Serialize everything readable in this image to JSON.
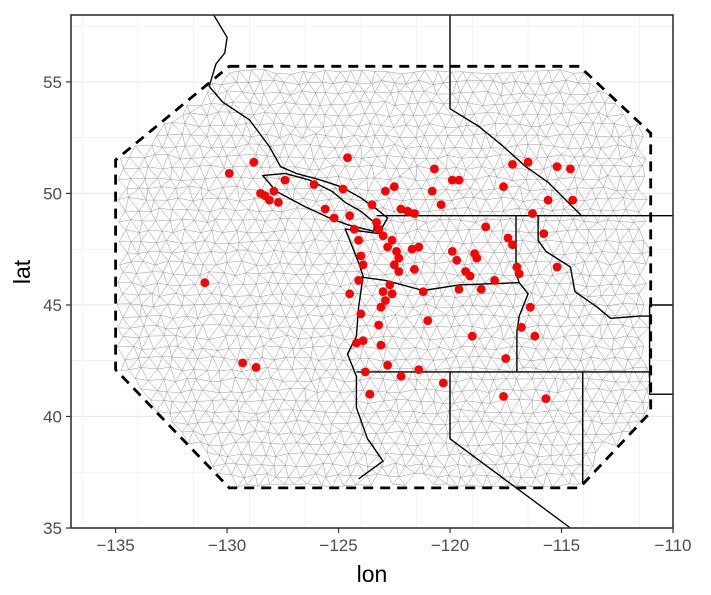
{
  "chart_data": {
    "type": "scatter",
    "title": "",
    "xlabel": "lon",
    "ylabel": "lat",
    "xlim": [
      -137,
      -110
    ],
    "ylim": [
      35,
      58
    ],
    "grid": true,
    "x_ticks": [
      -135,
      -130,
      -125,
      -120,
      -115,
      -110
    ],
    "y_ticks": [
      35,
      40,
      45,
      50,
      55
    ],
    "x_tick_labels": [
      "−135",
      "−130",
      "−125",
      "−120",
      "−115",
      "−110"
    ],
    "y_tick_labels": [
      "35",
      "40",
      "45",
      "50",
      "55"
    ],
    "point_color": "#ff0000",
    "mesh_color": "#8c8c8c",
    "boundary_color": "#000000",
    "domain_boundary": [
      [
        -129.9,
        55.7
      ],
      [
        -114.2,
        55.7
      ],
      [
        -111.0,
        52.7
      ],
      [
        -111.0,
        40.2
      ],
      [
        -114.2,
        36.8
      ],
      [
        -129.9,
        36.8
      ],
      [
        -135.0,
        42.1
      ],
      [
        -135.0,
        51.5
      ]
    ],
    "points": [
      [
        -131.0,
        46.0
      ],
      [
        -129.9,
        50.9
      ],
      [
        -129.3,
        42.4
      ],
      [
        -128.8,
        51.4
      ],
      [
        -128.7,
        42.2
      ],
      [
        -128.5,
        50.0
      ],
      [
        -128.3,
        49.9
      ],
      [
        -128.1,
        49.7
      ],
      [
        -127.9,
        50.1
      ],
      [
        -127.7,
        49.6
      ],
      [
        -127.4,
        50.6
      ],
      [
        -126.1,
        50.4
      ],
      [
        -125.6,
        49.3
      ],
      [
        -125.2,
        48.9
      ],
      [
        -124.8,
        50.2
      ],
      [
        -124.6,
        51.6
      ],
      [
        -124.5,
        49.0
      ],
      [
        -124.3,
        48.4
      ],
      [
        -124.1,
        47.9
      ],
      [
        -124.0,
        47.2
      ],
      [
        -124.1,
        46.1
      ],
      [
        -123.9,
        46.8
      ],
      [
        -124.0,
        44.6
      ],
      [
        -123.9,
        43.4
      ],
      [
        -123.8,
        42.0
      ],
      [
        -123.6,
        41.0
      ],
      [
        -123.5,
        49.5
      ],
      [
        -123.3,
        48.7
      ],
      [
        -123.2,
        48.4
      ],
      [
        -123.0,
        48.1
      ],
      [
        -122.8,
        47.6
      ],
      [
        -122.6,
        47.9
      ],
      [
        -122.4,
        47.4
      ],
      [
        -122.3,
        47.1
      ],
      [
        -122.5,
        46.8
      ],
      [
        -122.3,
        46.5
      ],
      [
        -122.7,
        45.9
      ],
      [
        -122.6,
        45.5
      ],
      [
        -122.9,
        45.2
      ],
      [
        -123.1,
        44.9
      ],
      [
        -123.2,
        44.1
      ],
      [
        -123.1,
        43.2
      ],
      [
        -122.8,
        42.3
      ],
      [
        -122.2,
        41.8
      ],
      [
        -123.0,
        45.6
      ],
      [
        -122.9,
        50.1
      ],
      [
        -122.5,
        50.3
      ],
      [
        -122.2,
        49.3
      ],
      [
        -121.9,
        49.2
      ],
      [
        -121.6,
        49.1
      ],
      [
        -121.7,
        47.5
      ],
      [
        -121.4,
        47.6
      ],
      [
        -121.6,
        46.6
      ],
      [
        -121.2,
        45.6
      ],
      [
        -121.0,
        44.3
      ],
      [
        -120.7,
        51.1
      ],
      [
        -120.8,
        50.1
      ],
      [
        -120.4,
        49.5
      ],
      [
        -119.9,
        50.6
      ],
      [
        -119.6,
        50.6
      ],
      [
        -119.9,
        47.4
      ],
      [
        -119.7,
        47.0
      ],
      [
        -119.3,
        46.5
      ],
      [
        -119.1,
        46.3
      ],
      [
        -119.6,
        45.7
      ],
      [
        -118.9,
        47.3
      ],
      [
        -118.8,
        47.1
      ],
      [
        -119.0,
        43.6
      ],
      [
        -118.6,
        45.7
      ],
      [
        -118.4,
        48.5
      ],
      [
        -118.0,
        46.1
      ],
      [
        -117.6,
        50.3
      ],
      [
        -117.4,
        48.0
      ],
      [
        -117.2,
        47.7
      ],
      [
        -117.0,
        46.7
      ],
      [
        -116.9,
        46.4
      ],
      [
        -116.8,
        44.0
      ],
      [
        -117.5,
        42.6
      ],
      [
        -117.6,
        40.9
      ],
      [
        -116.4,
        44.9
      ],
      [
        -116.2,
        43.6
      ],
      [
        -115.8,
        48.2
      ],
      [
        -115.6,
        49.7
      ],
      [
        -115.2,
        51.2
      ],
      [
        -114.6,
        51.1
      ],
      [
        -114.5,
        49.7
      ],
      [
        -115.7,
        40.8
      ],
      [
        -116.5,
        51.4
      ],
      [
        -117.2,
        51.3
      ],
      [
        -116.3,
        49.1
      ],
      [
        -115.2,
        46.7
      ],
      [
        -120.3,
        41.5
      ],
      [
        -121.4,
        42.1
      ],
      [
        -124.5,
        45.5
      ],
      [
        -124.2,
        43.3
      ]
    ]
  }
}
